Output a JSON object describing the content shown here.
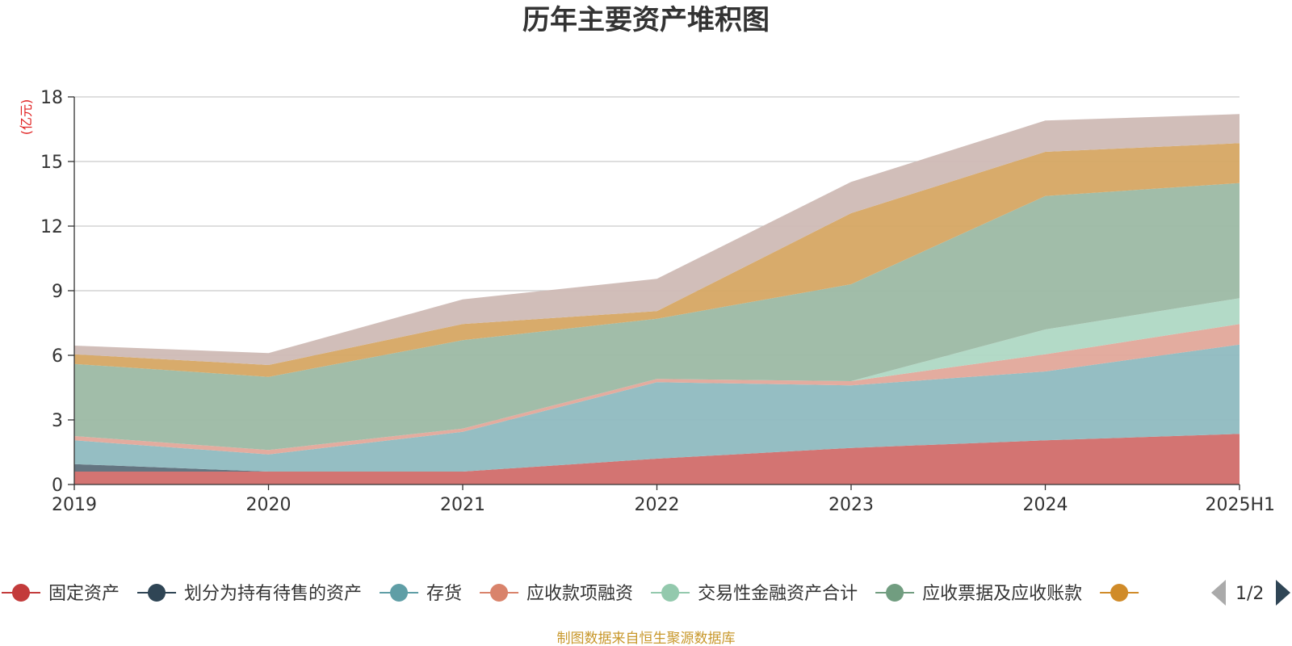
{
  "page": {
    "title": "历年主要资产堆积图",
    "source_note": "制图数据来自恒生聚源数据库"
  },
  "chart_data": {
    "type": "area",
    "stacked": true,
    "title": "历年主要资产堆积图",
    "unit_label": "(亿元)",
    "x": [
      "2019",
      "2020",
      "2021",
      "2022",
      "2023",
      "2024",
      "2025H1"
    ],
    "y_ticks": [
      "0",
      "3",
      "6",
      "9",
      "12",
      "15",
      "18"
    ],
    "ylim": [
      0,
      18
    ],
    "grid": true,
    "legend_position": "bottom",
    "legend_page": "1/2",
    "series": [
      {
        "name": "固定资产",
        "color": "#d16d6a",
        "values": [
          0.6,
          0.6,
          0.6,
          1.2,
          1.7,
          2.05,
          2.35
        ]
      },
      {
        "name": "划分为持有待售的资产",
        "color": "#5c6e7a",
        "values": [
          0.35,
          0.0,
          0.0,
          0.0,
          0.0,
          0.0,
          0.0
        ]
      },
      {
        "name": "存货",
        "color": "#8fbac0",
        "values": [
          1.1,
          0.8,
          1.85,
          3.55,
          2.9,
          3.2,
          4.15
        ]
      },
      {
        "name": "应收款项融资",
        "color": "#e2a89a",
        "values": [
          0.2,
          0.2,
          0.15,
          0.15,
          0.2,
          0.8,
          0.95
        ]
      },
      {
        "name": "交易性金融资产合计",
        "color": "#afd8c4",
        "values": [
          0.0,
          0.0,
          0.0,
          0.0,
          0.0,
          1.15,
          1.2
        ]
      },
      {
        "name": "应收票据及应收账款",
        "color": "#9cb9a4",
        "values": [
          3.35,
          3.4,
          4.1,
          2.8,
          4.5,
          6.2,
          5.35
        ]
      },
      {
        "color": "#d6a763",
        "values": [
          0.45,
          0.55,
          0.75,
          0.35,
          3.3,
          2.05,
          1.85
        ]
      },
      {
        "color": "#cfbbb5",
        "values": [
          0.4,
          0.55,
          1.15,
          1.5,
          1.45,
          1.45,
          1.35
        ]
      }
    ],
    "legend_colors": {
      "marker_0": "#c33b3b",
      "marker_1": "#2f4555",
      "marker_2": "#5f9ea6",
      "marker_3": "#d9836b",
      "marker_4": "#93c9ad",
      "marker_5": "#719d80",
      "marker_6": "#d08b29"
    },
    "text_colors": {
      "unit": "#e02020",
      "source": "#c8982c"
    }
  }
}
